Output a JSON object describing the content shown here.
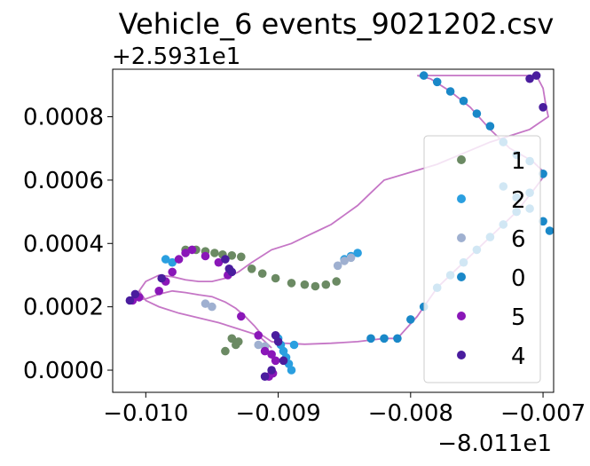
{
  "chart_data": {
    "type": "scatter",
    "title": "Vehicle_6 events_9021202.csv",
    "xlabel": "",
    "ylabel": "",
    "x_offset_label": "−8.011e1",
    "y_offset_label": "+2.5931e1",
    "x_offset": -80.11,
    "y_offset": 25.931,
    "xlim": [
      -0.01025,
      -0.00692
    ],
    "ylim": [
      -7e-05,
      0.00095
    ],
    "x_ticks": [
      -0.01,
      -0.009,
      -0.008,
      -0.007
    ],
    "x_tick_labels": [
      "−0.010",
      "−0.009",
      "−0.008",
      "−0.007"
    ],
    "y_ticks": [
      0.0,
      0.0002,
      0.0004,
      0.0006,
      0.0008
    ],
    "y_tick_labels": [
      "0.0000",
      "0.0002",
      "0.0004",
      "0.0006",
      "0.0008"
    ],
    "grid": false,
    "legend_position": "right",
    "path_color": "#c576c6",
    "series": [
      {
        "name": "1",
        "color": "#6b8a63",
        "points": [
          [
            -0.0097,
            0.00038
          ],
          [
            -0.00962,
            0.00038
          ],
          [
            -0.00955,
            0.000375
          ],
          [
            -0.00948,
            0.00037
          ],
          [
            -0.00942,
            0.000365
          ],
          [
            -0.00935,
            0.000362
          ],
          [
            -0.00928,
            0.000358
          ],
          [
            -0.0092,
            0.00032
          ],
          [
            -0.00912,
            0.000305
          ],
          [
            -0.00902,
            0.00029
          ],
          [
            -0.0089,
            0.000275
          ],
          [
            -0.0088,
            0.00027
          ],
          [
            -0.00872,
            0.000265
          ],
          [
            -0.00864,
            0.00027
          ],
          [
            -0.00856,
            0.00028
          ],
          [
            -0.00935,
            0.0001
          ],
          [
            -0.00932,
            8e-05
          ],
          [
            -0.0093,
            9e-05
          ],
          [
            -0.0094,
            6e-05
          ]
        ]
      },
      {
        "name": "2",
        "color": "#2a9fe0",
        "points": [
          [
            -0.009,
            0.0001
          ],
          [
            -0.00898,
            8e-05
          ],
          [
            -0.00896,
            6e-05
          ],
          [
            -0.00894,
            4e-05
          ],
          [
            -0.00892,
            2e-05
          ],
          [
            -0.0089,
            0.0
          ],
          [
            -0.00888,
            8e-05
          ],
          [
            -0.0085,
            0.00035
          ],
          [
            -0.00845,
            0.00036
          ],
          [
            -0.0084,
            0.00037
          ],
          [
            -0.0098,
            0.00034
          ],
          [
            -0.00985,
            0.00035
          ]
        ]
      },
      {
        "name": "6",
        "color": "#9fb0d0",
        "points": [
          [
            -0.00855,
            0.00033
          ],
          [
            -0.0085,
            0.000345
          ],
          [
            -0.00845,
            0.000355
          ],
          [
            -0.00915,
            8e-05
          ],
          [
            -0.0091,
            7.5e-05
          ],
          [
            -0.0095,
            0.0002
          ],
          [
            -0.00955,
            0.00021
          ]
        ]
      },
      {
        "name": "0",
        "color": "#1a88c8",
        "points": [
          [
            -0.0083,
            0.0001
          ],
          [
            -0.0082,
            0.0001
          ],
          [
            -0.0081,
            0.0001
          ],
          [
            -0.008,
            0.00016
          ],
          [
            -0.0079,
            0.0002
          ],
          [
            -0.0078,
            0.00026
          ],
          [
            -0.0077,
            0.0003
          ],
          [
            -0.0076,
            0.00034
          ],
          [
            -0.0075,
            0.00038
          ],
          [
            -0.0074,
            0.00042
          ],
          [
            -0.0073,
            0.00046
          ],
          [
            -0.0072,
            0.0005
          ],
          [
            -0.0071,
            0.00056
          ],
          [
            -0.007,
            0.00062
          ],
          [
            -0.0071,
            0.00066
          ],
          [
            -0.0072,
            0.00068
          ],
          [
            -0.0073,
            0.00072
          ],
          [
            -0.0074,
            0.00077
          ],
          [
            -0.0075,
            0.00081
          ],
          [
            -0.0076,
            0.00085
          ],
          [
            -0.0077,
            0.00088
          ],
          [
            -0.0078,
            0.00091
          ],
          [
            -0.0079,
            0.00093
          ],
          [
            -0.0073,
            0.00058
          ],
          [
            -0.0072,
            0.000545
          ],
          [
            -0.0071,
            0.00051
          ],
          [
            -0.007,
            0.00047
          ],
          [
            -0.00695,
            0.00044
          ]
        ]
      },
      {
        "name": "5",
        "color": "#8a17b8",
        "points": [
          [
            -0.0101,
            0.00022
          ],
          [
            -0.01005,
            0.00023
          ],
          [
            -0.0099,
            0.00025
          ],
          [
            -0.00985,
            0.00028
          ],
          [
            -0.0098,
            0.00031
          ],
          [
            -0.00975,
            0.00035
          ],
          [
            -0.0097,
            0.00037
          ],
          [
            -0.00965,
            0.00038
          ],
          [
            -0.00955,
            0.00036
          ],
          [
            -0.00945,
            0.00034
          ],
          [
            -0.00938,
            0.0003
          ],
          [
            -0.00928,
            0.00017
          ],
          [
            -0.00915,
            0.00011
          ],
          [
            -0.00905,
            5e-05
          ],
          [
            -0.00902,
            3e-05
          ],
          [
            -0.00904,
            -1e-05
          ],
          [
            -0.00907,
            -2e-05
          ],
          [
            -0.0091,
            6e-05
          ]
        ]
      },
      {
        "name": "4",
        "color": "#4a1d9e",
        "points": [
          [
            -0.01012,
            0.00022
          ],
          [
            -0.01008,
            0.00024
          ],
          [
            -0.00988,
            0.00029
          ],
          [
            -0.0094,
            0.00035
          ],
          [
            -0.00937,
            0.00032
          ],
          [
            -0.00935,
            0.00031
          ],
          [
            -0.00905,
            0.0
          ],
          [
            -0.009,
            9e-05
          ],
          [
            -0.00896,
            3e-05
          ],
          [
            -0.0091,
            -2e-05
          ],
          [
            -0.00902,
            0.00011
          ],
          [
            -0.007,
            0.00083
          ],
          [
            -0.00705,
            0.00093
          ],
          [
            -0.0071,
            0.00092
          ]
        ]
      }
    ],
    "path": [
      [
        -0.01012,
        0.00022
      ],
      [
        -0.01,
        0.000225
      ],
      [
        -0.0099,
        0.00024
      ],
      [
        -0.0098,
        0.00025
      ],
      [
        -0.0097,
        0.000245
      ],
      [
        -0.0096,
        0.000238
      ],
      [
        -0.0095,
        0.000232
      ],
      [
        -0.0094,
        0.000215
      ],
      [
        -0.00932,
        0.000195
      ],
      [
        -0.00925,
        0.00017
      ],
      [
        -0.00918,
        0.00014
      ],
      [
        -0.00912,
        0.00011
      ],
      [
        -0.00905,
        9e-05
      ],
      [
        -0.00895,
        8.5e-05
      ],
      [
        -0.0088,
        8.2e-05
      ],
      [
        -0.0086,
        8.5e-05
      ],
      [
        -0.0084,
        9e-05
      ],
      [
        -0.0082,
        0.0001
      ],
      [
        -0.0081,
        0.0001
      ],
      [
        -0.00795,
        0.00017
      ],
      [
        -0.0078,
        0.00026
      ],
      [
        -0.00765,
        0.00032
      ],
      [
        -0.0075,
        0.00038
      ],
      [
        -0.00735,
        0.00044
      ],
      [
        -0.0072,
        0.0005
      ],
      [
        -0.00705,
        0.00058
      ],
      [
        -0.00698,
        0.00062
      ],
      [
        -0.00708,
        0.00066
      ],
      [
        -0.00725,
        0.0007
      ],
      [
        -0.0074,
        0.00076
      ],
      [
        -0.00755,
        0.00083
      ],
      [
        -0.0077,
        0.00088
      ],
      [
        -0.00785,
        0.00092
      ],
      [
        -0.00795,
        0.00093
      ],
      [
        -0.00705,
        0.00093
      ],
      [
        -0.007,
        0.00089
      ],
      [
        -0.00698,
        0.00084
      ],
      [
        -0.00696,
        0.0008
      ],
      [
        -0.0071,
        0.00076
      ],
      [
        -0.0074,
        0.00072
      ],
      [
        -0.0078,
        0.00065
      ],
      [
        -0.0082,
        0.0006
      ],
      [
        -0.0083,
        0.00056
      ],
      [
        -0.0084,
        0.00052
      ],
      [
        -0.0085,
        0.00049
      ],
      [
        -0.0086,
        0.00046
      ],
      [
        -0.0087,
        0.00044
      ],
      [
        -0.0088,
        0.00042
      ],
      [
        -0.0089,
        0.0004
      ],
      [
        -0.00905,
        0.00038
      ],
      [
        -0.0092,
        0.00034
      ],
      [
        -0.0093,
        0.00031
      ],
      [
        -0.0094,
        0.00029
      ],
      [
        -0.0095,
        0.00028
      ],
      [
        -0.0096,
        0.00028
      ],
      [
        -0.0097,
        0.000285
      ],
      [
        -0.0098,
        0.000295
      ],
      [
        -0.0099,
        0.0003
      ],
      [
        -0.01,
        0.00028
      ],
      [
        -0.01005,
        0.00025
      ],
      [
        -0.01,
        0.00022
      ],
      [
        -0.0099,
        0.0002
      ],
      [
        -0.00975,
        0.00018
      ],
      [
        -0.0096,
        0.000165
      ],
      [
        -0.00945,
        0.00015
      ],
      [
        -0.0093,
        0.00013
      ],
      [
        -0.00915,
        0.00011
      ],
      [
        -0.00905,
        7e-05
      ]
    ]
  }
}
